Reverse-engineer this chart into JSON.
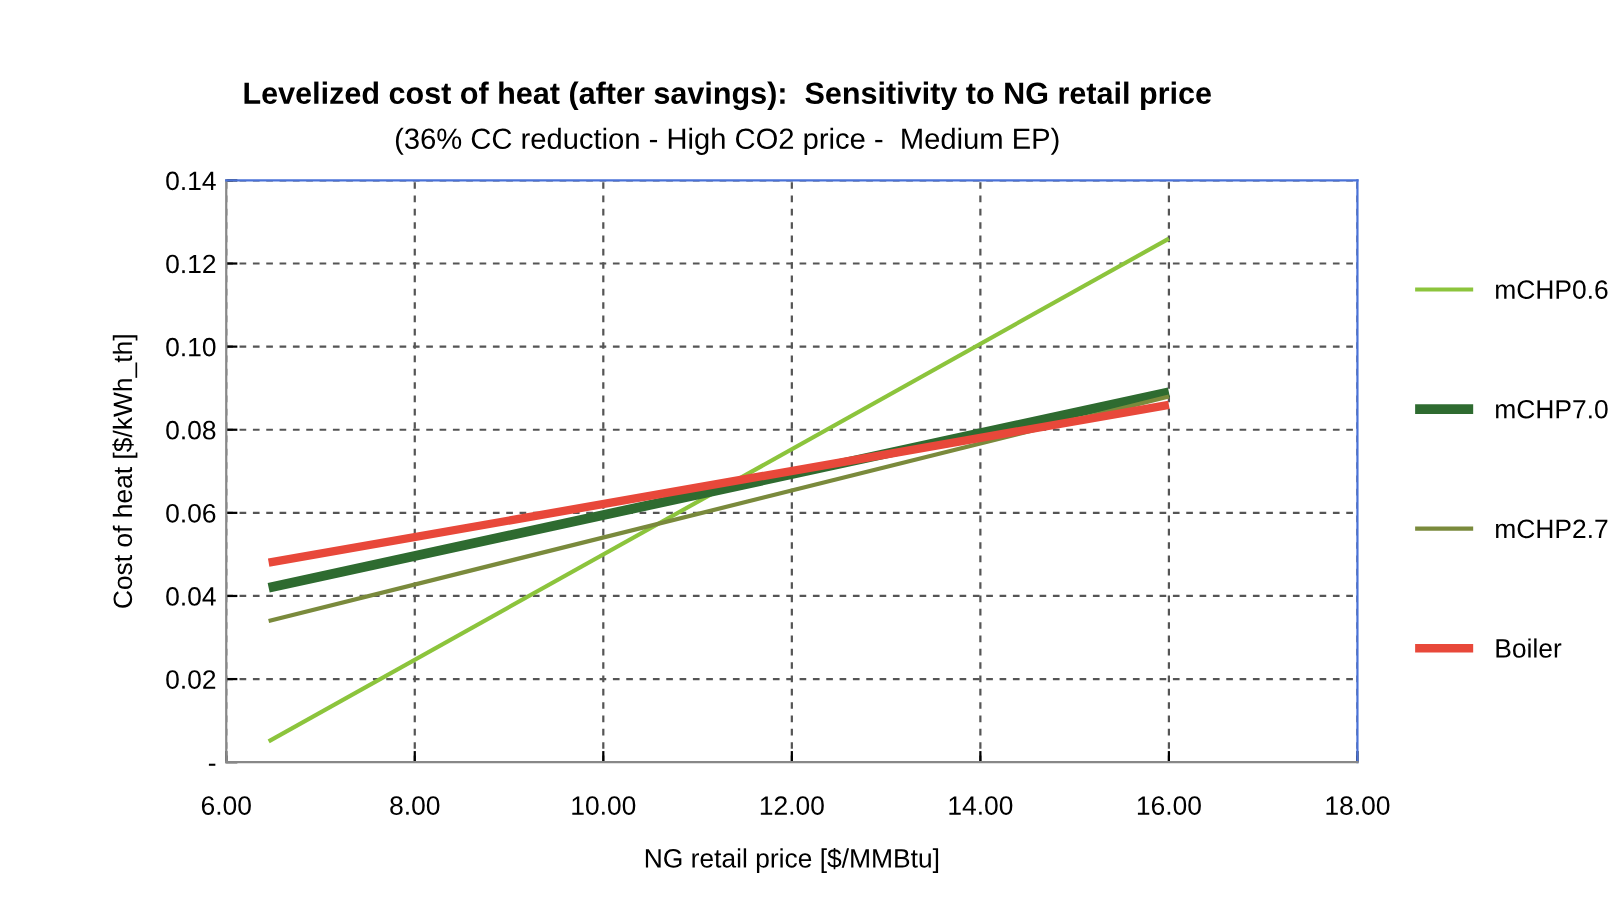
{
  "chart_data": {
    "type": "line",
    "title": "Levelized cost of heat (after savings):  Sensitivity to NG retail price",
    "subtitle": "(36% CC reduction - High CO2 price -  Medium EP)",
    "xlabel": "NG retail price [$/MMBtu]",
    "ylabel": "Cost of heat [$/kWh_th]",
    "series": [
      {
        "name": "mCHP0.6",
        "color": "#8cc43c",
        "values": [
          0.005,
          0.126
        ]
      },
      {
        "name": "mCHP7.0",
        "color": "#2e6b30",
        "values": [
          0.042,
          0.089
        ]
      },
      {
        "name": "mCHP2.7",
        "color": "#7a8a3c",
        "values": [
          0.034,
          0.088
        ]
      },
      {
        "name": "Boiler",
        "color": "#e8483a",
        "values": [
          0.048,
          0.086
        ]
      }
    ],
    "x": [
      6.45,
      16
    ],
    "xlim": [
      6,
      18
    ],
    "ylim": [
      0,
      0.14
    ],
    "xticks": [
      {
        "value": 6,
        "label": "6.00"
      },
      {
        "value": 8,
        "label": "8.00"
      },
      {
        "value": 10,
        "label": "10.00"
      },
      {
        "value": 12,
        "label": "12.00"
      },
      {
        "value": 14,
        "label": "14.00"
      },
      {
        "value": 16,
        "label": "16.00"
      },
      {
        "value": 18,
        "label": "18.00"
      }
    ],
    "yticks": [
      {
        "value": 0,
        "label": "-"
      },
      {
        "value": 0.02,
        "label": "0.02"
      },
      {
        "value": 0.04,
        "label": "0.04"
      },
      {
        "value": 0.06,
        "label": "0.06"
      },
      {
        "value": 0.08,
        "label": "0.08"
      },
      {
        "value": 0.1,
        "label": "0.10"
      },
      {
        "value": 0.12,
        "label": "0.12"
      },
      {
        "value": 0.14,
        "label": "0.14"
      }
    ],
    "grid": true,
    "legend": "right",
    "line_style": "solid",
    "marker": "none"
  }
}
